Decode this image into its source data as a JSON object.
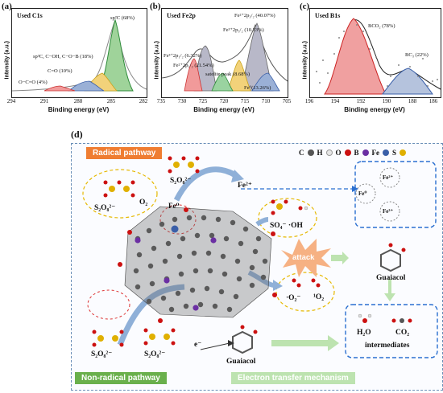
{
  "panel_a": {
    "label": "(a)",
    "title": "Used C1s",
    "xlabel": "Binding energy (eV)",
    "ylabel": "Intensity (a.u.)",
    "xticks": [
      "294",
      "291",
      "288",
      "285",
      "282"
    ],
    "peaks": [
      "sp²C (68%)",
      "sp³C, C−OH, C−O−B (18%)",
      "C=O (10%)",
      "O−C=O (4%)"
    ]
  },
  "panel_b": {
    "label": "(b)",
    "title": "Used Fe2p",
    "xlabel": "Binding energy (eV)",
    "ylabel": "Intensity (a.u.)",
    "xticks": [
      "735",
      "730",
      "725",
      "720",
      "715",
      "710",
      "705"
    ],
    "peaks": [
      "Fe²⁺2p₃/₂ (40.07%)",
      "Fe³⁺2p₃/₂ (10.33%)",
      "Fe³⁺2p₁/₂ (6.32%)",
      "Fe²⁺2p₁/₂ (21.54%)",
      "satelite peak (8.68%)",
      "Fe⁰(13.26%)"
    ]
  },
  "panel_c": {
    "label": "(c)",
    "title": "Used B1s",
    "xlabel": "Binding energy (eV)",
    "ylabel": "Intensity (a.u.)",
    "xticks": [
      "196",
      "194",
      "192",
      "190",
      "188",
      "186"
    ],
    "peaks": [
      "BCO₂ (78%)",
      "BC₃ (22%)"
    ]
  },
  "panel_d": {
    "label": "(d)",
    "radical_pathway": "Radical pathway",
    "non_radical_pathway": "Non-radical pathway",
    "electron_transfer": "Electron transfer mechanism",
    "legend": [
      "C",
      "H",
      "O",
      "B",
      "Fe",
      "S"
    ],
    "species": {
      "s2o8_top": "S₂O₈²⁻",
      "s2o8_left": "S₂O₈²⁻",
      "s2o8_bl1": "S₂O₈²⁻",
      "s2o8_bl2": "S₂O₈²⁻",
      "o2": "O₂",
      "fe0": "Fe⁰",
      "fe2": "Fe²⁺",
      "radicals": "SO₄⁻  ·OH",
      "attack": "attack",
      "superoxide": "·O₂⁻",
      "singlet": "¹O₂",
      "electron": "e⁻",
      "guaiacol_bottom": "Guaiacol",
      "guaiacol_right": "Guaiacol",
      "h2o": "H₂O",
      "co2": "CO₂",
      "intermediates": "intermediates",
      "cycle_fe0": "Fe⁰",
      "cycle_fe2": "Fe²⁺",
      "cycle_fe3": "Fe³⁺"
    },
    "colors": {
      "C": "#555555",
      "H": "#e0e0e0",
      "O": "#cc1111",
      "B": "#6b2fa3",
      "Fe": "#3a5fa8",
      "S": "#e0b000"
    }
  }
}
